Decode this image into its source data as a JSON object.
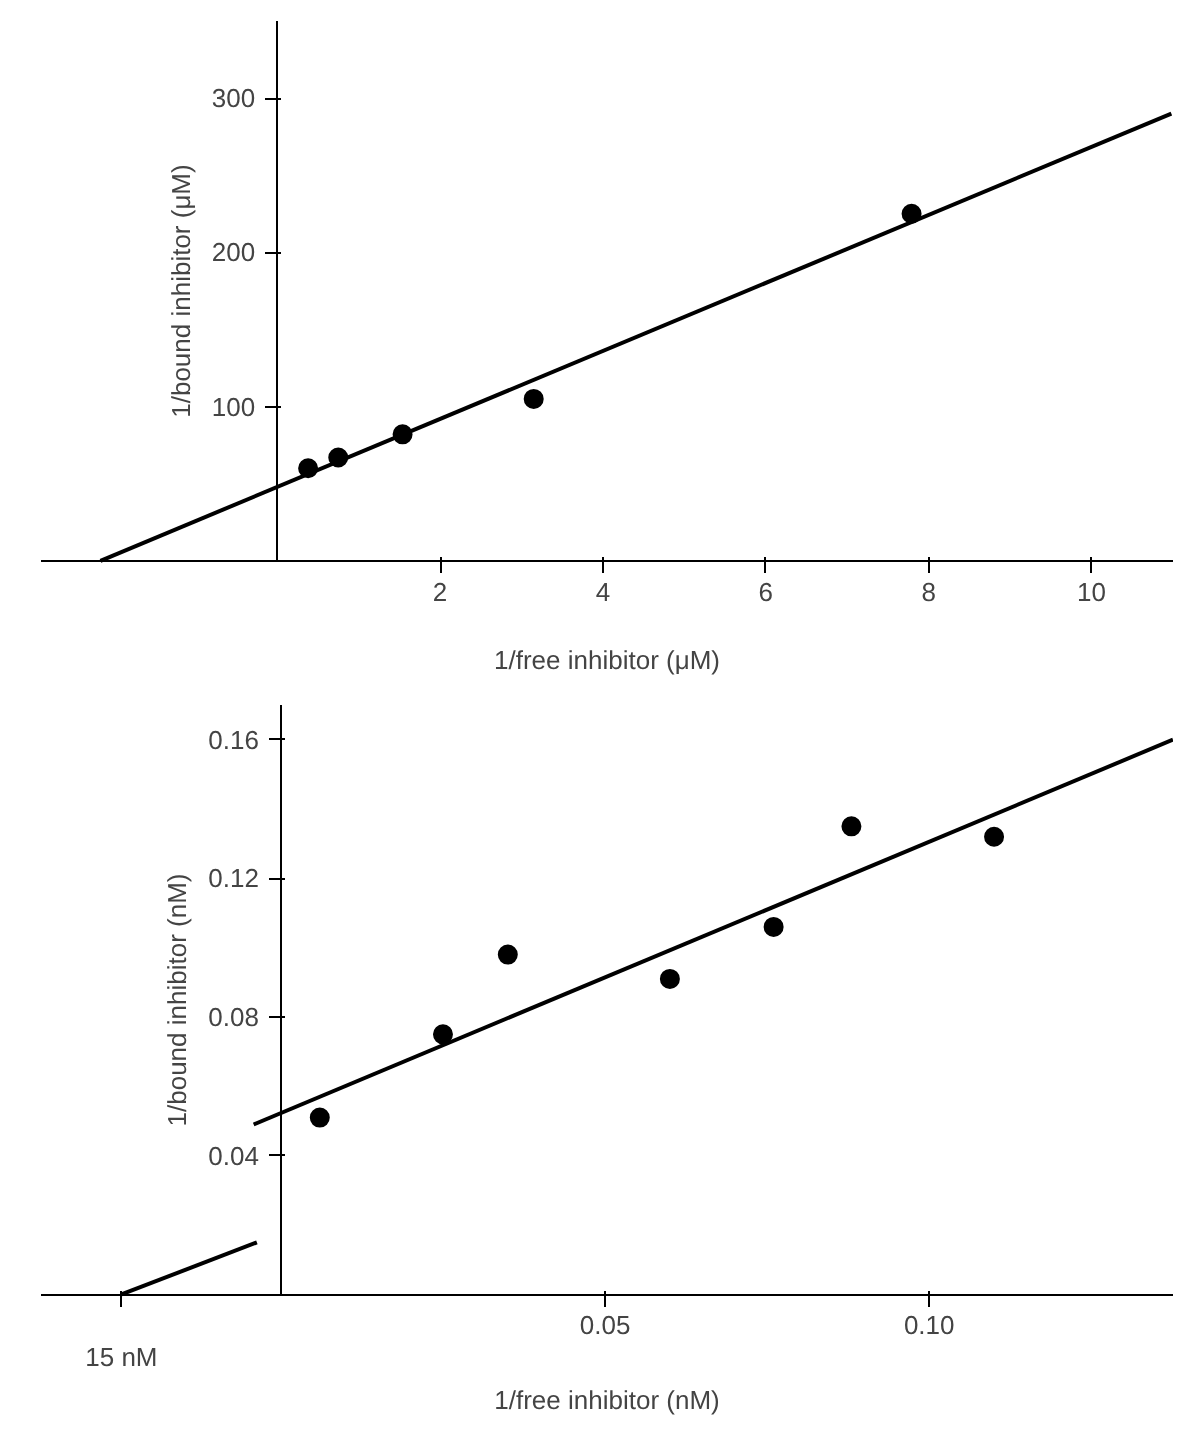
{
  "chart_data": [
    {
      "type": "scatter",
      "xlabel": "1/free inhibitor (μM)",
      "ylabel": "1/bound inhibitor (μM)",
      "xlim": [
        -2.9,
        11
      ],
      "ylim": [
        0,
        350
      ],
      "xticks": [
        2,
        4,
        6,
        8,
        10
      ],
      "yticks": [
        100,
        200,
        300
      ],
      "grid": false,
      "marker": "circle",
      "series": [
        {
          "color": "#000000",
          "x": [
            0.38,
            0.75,
            1.54,
            3.15,
            7.79
          ],
          "values": [
            60,
            67,
            82,
            105,
            225
          ]
        },
        {
          "type": "line",
          "marker": "none",
          "color": "#000000",
          "x": [
            -2.17,
            10.98
          ],
          "values": [
            0,
            290
          ]
        }
      ]
    },
    {
      "type": "scatter",
      "xlabel": "1/free inhibitor (nM)",
      "ylabel": "1/bound inhibitor (nM)",
      "xlim": [
        -0.037,
        0.1376
      ],
      "ylim": [
        0,
        0.17
      ],
      "annotations": [
        {
          "text": "15 nM",
          "x": -0.0246,
          "y": 0
        }
      ],
      "xticks": [
        {
          "value": -0.0246,
          "label": null
        },
        {
          "value": 0.05,
          "label": "0.05"
        },
        {
          "value": 0.1,
          "label": "0.10"
        }
      ],
      "yticks": [
        {
          "value": 0.04,
          "label": "0.04"
        },
        {
          "value": 0.08,
          "label": "0.08"
        },
        {
          "value": 0.12,
          "label": "0.12"
        },
        {
          "value": 0.16,
          "label": "0.16"
        }
      ],
      "grid": false,
      "marker": "circle",
      "series": [
        {
          "color": "#000000",
          "x": [
            0.006,
            0.025,
            0.035,
            0.06,
            0.076,
            0.088,
            0.11
          ],
          "values": [
            0.051,
            0.075,
            0.098,
            0.091,
            0.106,
            0.135,
            0.132
          ]
        },
        {
          "type": "line",
          "marker": "none",
          "color": "#000000",
          "x": [
            -0.0042,
            0.1376
          ],
          "values": [
            0.049,
            0.16
          ]
        },
        {
          "type": "line",
          "marker": "none",
          "color": "#000000",
          "x": [
            -0.0246,
            -0.0037
          ],
          "values": [
            0,
            0.015
          ]
        }
      ]
    }
  ]
}
